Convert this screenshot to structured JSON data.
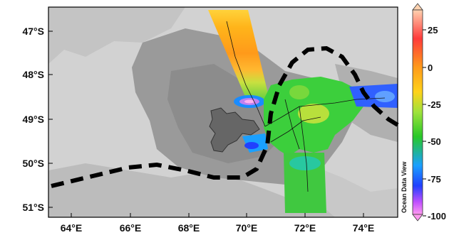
{
  "map": {
    "lon_labels": [
      "64°E",
      "66°E",
      "68°E",
      "70°E",
      "72°E",
      "74°E"
    ],
    "lat_labels": [
      "47°S",
      "48°S",
      "49°S",
      "50°S",
      "51°S"
    ],
    "colorbar": {
      "tick_labels": [
        "25",
        "0",
        "-25",
        "-50",
        "-75",
        "-100"
      ],
      "colors": [
        "#ffd2b0",
        "#ff3b3b",
        "#ff9a1a",
        "#ffd21a",
        "#9ee23c",
        "#28c828",
        "#1aa0ff",
        "#2040ff",
        "#c050ff",
        "#ff9af0"
      ]
    },
    "watermark": "Ocean Data View",
    "colors": {
      "background_gray": "#d2d2d2",
      "plateau_gray": "#9a9a9a",
      "deep_gray": "#7a7a7a",
      "island": "#666666",
      "front_line": "#000000"
    }
  }
}
